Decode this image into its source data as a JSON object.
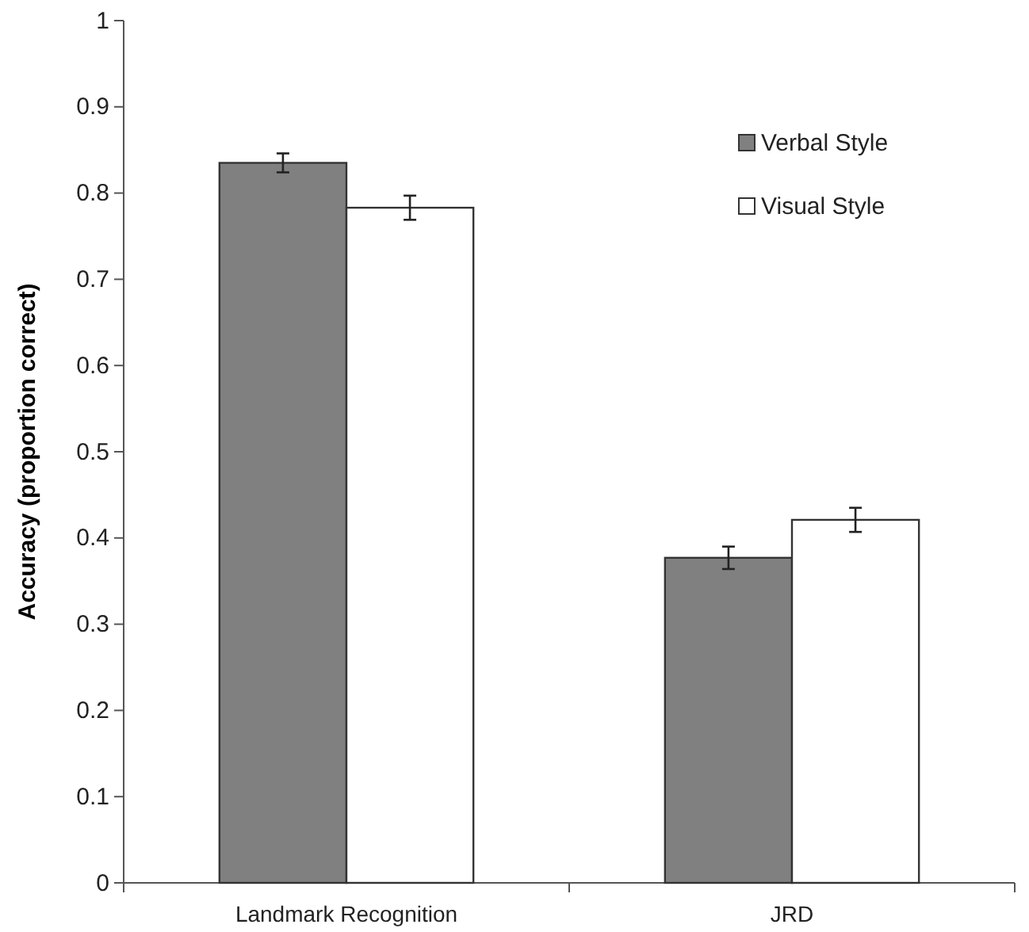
{
  "chart_data": {
    "type": "bar",
    "ylabel": "Accuracy (proportion correct)",
    "categories": [
      "Landmark Recognition",
      "JRD"
    ],
    "series": [
      {
        "name": "Verbal Style",
        "color": "#808080",
        "values": [
          0.835,
          0.377
        ],
        "errors": [
          0.011,
          0.013
        ]
      },
      {
        "name": "Visual Style",
        "color": "#ffffff",
        "values": [
          0.783,
          0.421
        ],
        "errors": [
          0.014,
          0.014
        ]
      }
    ],
    "ylim": [
      0,
      1
    ],
    "yticks": [
      0,
      0.1,
      0.2,
      0.3,
      0.4,
      0.5,
      0.6,
      0.7,
      0.8,
      0.9,
      1
    ],
    "grid": false,
    "legend": "top right"
  }
}
